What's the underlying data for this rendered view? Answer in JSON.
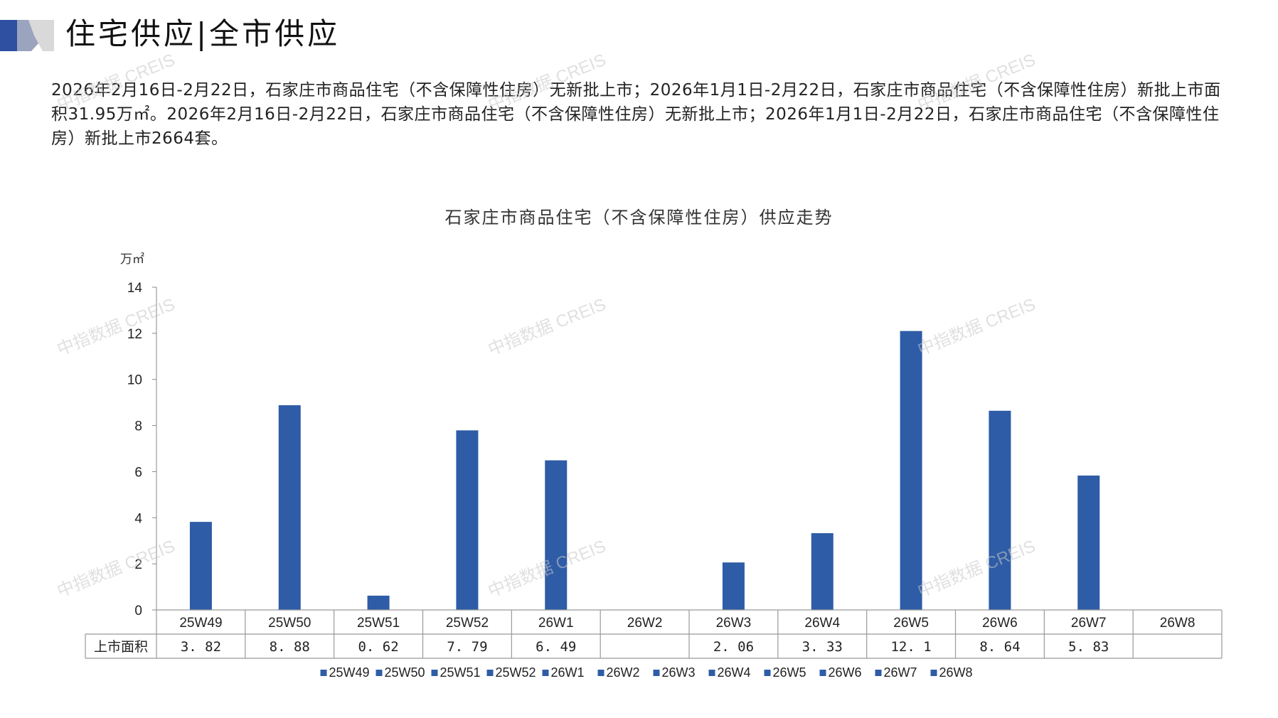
{
  "header": {
    "title": "住宅供应|全市供应"
  },
  "description": "2026年2月16日-2月22日，石家庄市商品住宅（不含保障性住房）无新批上市；2026年1月1日-2月22日，石家庄市商品住宅（不含保障性住房）新批上市面积31.95万㎡。2026年2月16日-2月22日，石家庄市商品住宅（不含保障性住房）无新批上市；2026年1月1日-2月22日，石家庄市商品住宅（不含保障性住房）新批上市2664套。",
  "watermark": "中指数据 CREIS",
  "colors": {
    "bar": "#2e5ca6",
    "accent_dark": "#2f4fa0",
    "accent_light": "#b8c1d9"
  },
  "chart_data": {
    "type": "bar",
    "title": "石家庄市商品住宅（不含保障性住房）供应走势",
    "ylabel": "万㎡",
    "ylim": [
      0,
      14
    ],
    "yticks": [
      0,
      2,
      4,
      6,
      8,
      10,
      12,
      14
    ],
    "categories": [
      "25W49",
      "25W50",
      "25W51",
      "25W52",
      "26W1",
      "26W2",
      "26W3",
      "26W4",
      "26W5",
      "26W6",
      "26W7",
      "26W8"
    ],
    "series": [
      {
        "name": "上市面积",
        "values": [
          3.82,
          8.88,
          0.62,
          7.79,
          6.49,
          null,
          2.06,
          3.33,
          12.1,
          8.64,
          5.83,
          null
        ]
      }
    ],
    "table_labels": [
      "3. 82",
      "8. 88",
      "0. 62",
      "7. 79",
      "6. 49",
      "",
      "2. 06",
      "3. 33",
      "12. 1",
      "8. 64",
      "5. 83",
      ""
    ],
    "legend": [
      "25W49",
      "25W50",
      "25W51",
      "25W52",
      "26W1",
      "26W2",
      "26W3",
      "26W4",
      "26W5",
      "26W6",
      "26W7",
      "26W8"
    ],
    "legend_position": "bottom"
  }
}
